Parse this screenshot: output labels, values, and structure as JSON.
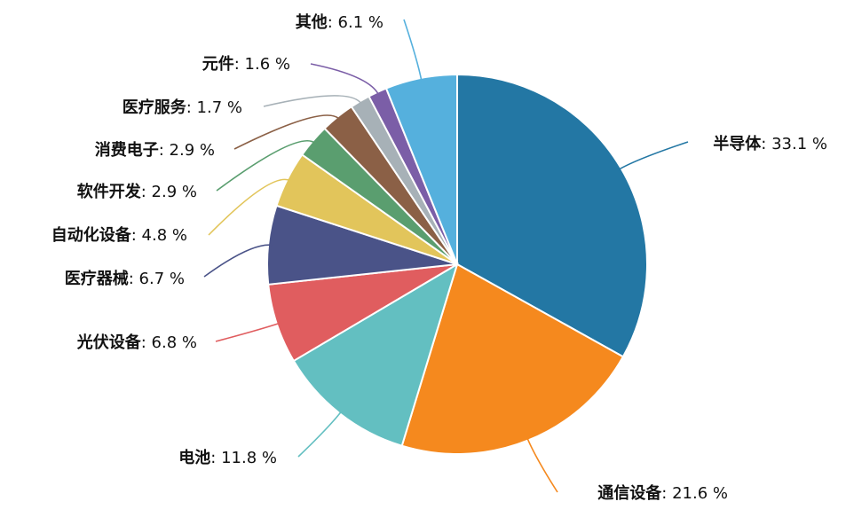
{
  "chart_data": {
    "type": "pie",
    "title": "",
    "slices": [
      {
        "name": "半导体",
        "value": 33.1,
        "label": "33.1 %",
        "color": "#2377a4"
      },
      {
        "name": "通信设备",
        "value": 21.6,
        "label": "21.6 %",
        "color": "#f5891e"
      },
      {
        "name": "电池",
        "value": 11.8,
        "label": "11.8 %",
        "color": "#63bfc1"
      },
      {
        "name": "光伏设备",
        "value": 6.8,
        "label": "6.8 %",
        "color": "#e05d5f"
      },
      {
        "name": "医疗器械",
        "value": 6.7,
        "label": "6.7 %",
        "color": "#4a5388"
      },
      {
        "name": "自动化设备",
        "value": 4.8,
        "label": "4.8 %",
        "color": "#e2c55b"
      },
      {
        "name": "软件开发",
        "value": 2.9,
        "label": "2.9 %",
        "color": "#5a9e6f"
      },
      {
        "name": "消费电子",
        "value": 2.9,
        "label": "2.9 %",
        "color": "#8b6046"
      },
      {
        "name": "医疗服务",
        "value": 1.7,
        "label": "1.7 %",
        "color": "#a7b1b7"
      },
      {
        "name": "元件",
        "value": 1.6,
        "label": "1.6 %",
        "color": "#7b5ea7"
      },
      {
        "name": "其他",
        "value": 6.1,
        "label": "6.1 %",
        "color": "#55b0dd"
      }
    ],
    "start_angle": "12 o'clock",
    "direction": "clockwise",
    "labels": "outside with leader lines"
  }
}
